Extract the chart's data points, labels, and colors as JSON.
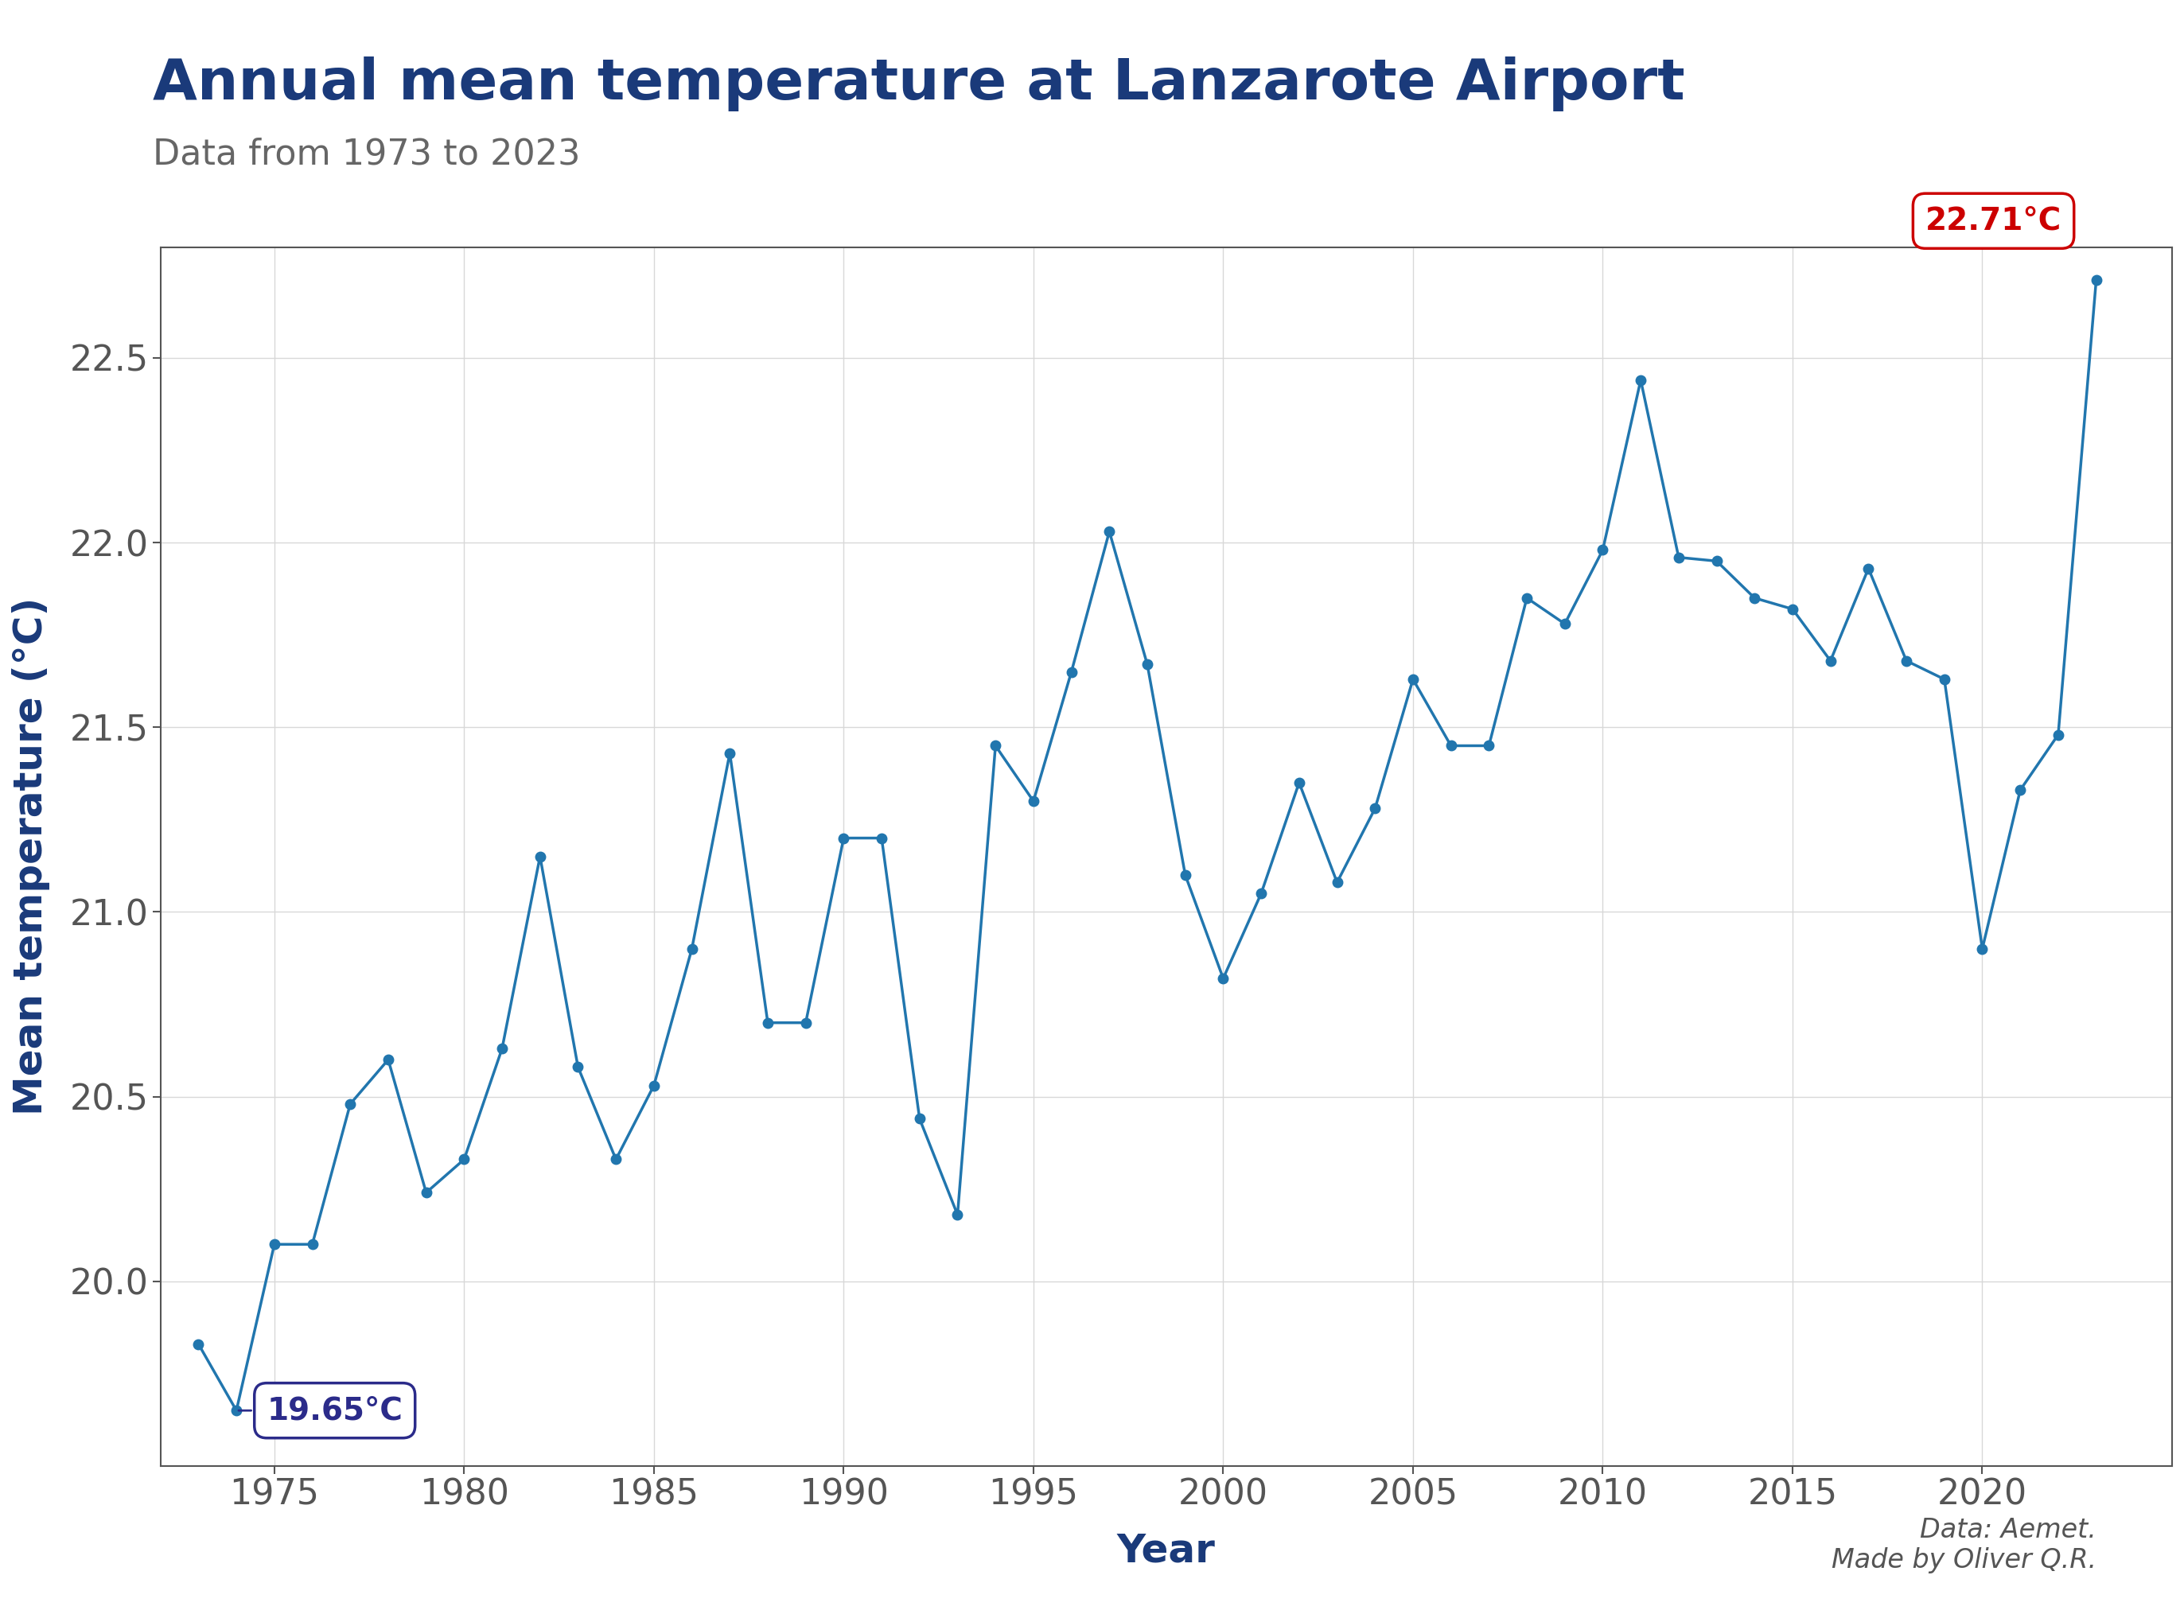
{
  "title": "Annual mean temperature at Lanzarote Airport",
  "subtitle": "Data from 1973 to 2023",
  "xlabel": "Year",
  "ylabel": "Mean temperature (°C)",
  "line_color": "#2176ae",
  "background_color": "#ffffff",
  "plot_bg_color": "#ffffff",
  "title_color": "#1a3a7a",
  "subtitle_color": "#666666",
  "axis_label_color": "#1a3a7a",
  "tick_color": "#555555",
  "annotation_border_min": "#2b2b8a",
  "annotation_text_min": "#1a3a7a",
  "annotation_color_max": "#cc0000",
  "watermark": "Data: Aemet.\nMade by Oliver Q.R.",
  "years": [
    1973,
    1974,
    1975,
    1976,
    1977,
    1978,
    1979,
    1980,
    1981,
    1982,
    1983,
    1984,
    1985,
    1986,
    1987,
    1988,
    1989,
    1990,
    1991,
    1992,
    1993,
    1994,
    1995,
    1996,
    1997,
    1998,
    1999,
    2000,
    2001,
    2002,
    2003,
    2004,
    2005,
    2006,
    2007,
    2008,
    2009,
    2010,
    2011,
    2012,
    2013,
    2014,
    2015,
    2016,
    2017,
    2018,
    2019,
    2020,
    2021,
    2022,
    2023
  ],
  "temps": [
    19.83,
    19.65,
    20.1,
    20.1,
    20.48,
    20.6,
    20.24,
    20.33,
    20.63,
    21.15,
    20.58,
    20.33,
    20.53,
    20.9,
    21.43,
    20.7,
    20.7,
    21.2,
    21.2,
    20.44,
    20.18,
    21.45,
    21.3,
    21.65,
    22.03,
    21.67,
    21.1,
    20.82,
    21.05,
    21.35,
    21.08,
    21.28,
    21.63,
    21.45,
    21.45,
    21.85,
    21.78,
    21.98,
    22.44,
    21.96,
    21.95,
    21.85,
    21.82,
    21.68,
    21.93,
    21.68,
    21.63,
    20.9,
    21.33,
    21.48,
    22.71
  ],
  "ylim_bottom": 19.5,
  "ylim_top": 22.8,
  "yticks": [
    20.0,
    20.5,
    21.0,
    21.5,
    22.0,
    22.5
  ],
  "xticks": [
    1975,
    1980,
    1985,
    1990,
    1995,
    2000,
    2005,
    2010,
    2015,
    2020
  ],
  "xlim_left": 1972,
  "xlim_right": 2025,
  "min_year": 1974,
  "min_temp": 19.65,
  "max_year": 2023,
  "max_temp": 22.71,
  "grid_color": "#d8d8d8",
  "marker_size": 9,
  "line_width": 2.5
}
